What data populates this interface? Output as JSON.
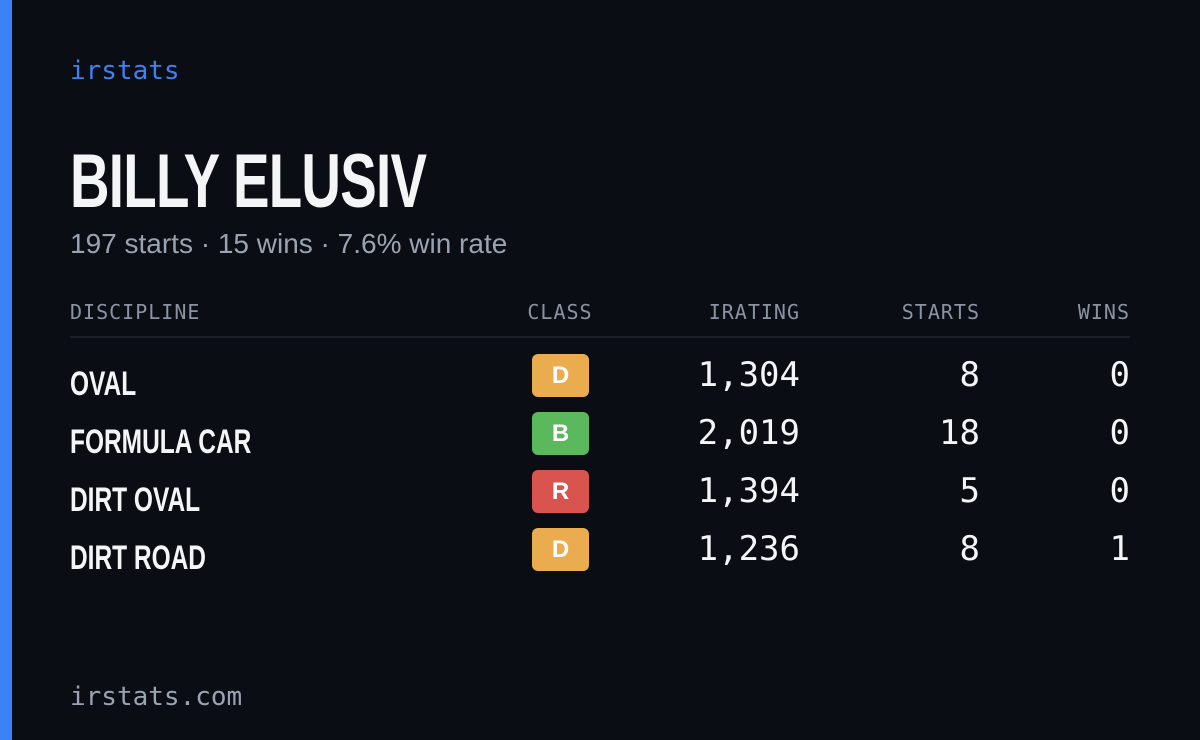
{
  "brand": "irstats",
  "title": "BILLY ELUSIV",
  "subtitle": "197 starts · 15 wins · 7.6% win rate",
  "table": {
    "headers": [
      "DISCIPLINE",
      "CLASS",
      "IRATING",
      "STARTS",
      "WINS"
    ],
    "rows": [
      [
        "OVAL",
        "D",
        "1,304",
        "8",
        "0"
      ],
      [
        "FORMULA CAR",
        "B",
        "2,019",
        "18",
        "0"
      ],
      [
        "DIRT OVAL",
        "R",
        "1,394",
        "5",
        "0"
      ],
      [
        "DIRT ROAD",
        "D",
        "1,236",
        "8",
        "1"
      ]
    ],
    "class_colors": {
      "D": "#ebab4f",
      "B": "#5cb85c",
      "R": "#d9534f"
    }
  },
  "footer": "irstats.com"
}
